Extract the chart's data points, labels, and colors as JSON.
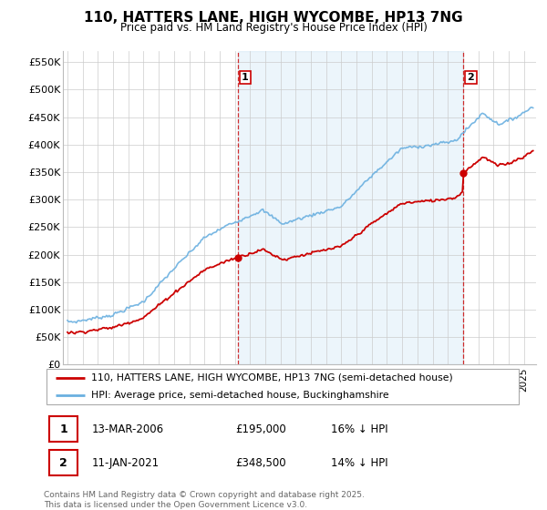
{
  "title": "110, HATTERS LANE, HIGH WYCOMBE, HP13 7NG",
  "subtitle": "Price paid vs. HM Land Registry's House Price Index (HPI)",
  "ylim": [
    0,
    570000
  ],
  "yticks": [
    0,
    50000,
    100000,
    150000,
    200000,
    250000,
    300000,
    350000,
    400000,
    450000,
    500000,
    550000
  ],
  "ytick_labels": [
    "£0",
    "£50K",
    "£100K",
    "£150K",
    "£200K",
    "£250K",
    "£300K",
    "£350K",
    "£400K",
    "£450K",
    "£500K",
    "£550K"
  ],
  "hpi_color": "#6ab0e0",
  "price_color": "#cc0000",
  "sale1_x": 2006.19,
  "sale1_y": 195000,
  "sale2_x": 2021.03,
  "sale2_y": 348500,
  "xmin": 1995.0,
  "xmax": 2025.6,
  "legend_line1": "110, HATTERS LANE, HIGH WYCOMBE, HP13 7NG (semi-detached house)",
  "legend_line2": "HPI: Average price, semi-detached house, Buckinghamshire",
  "annotation1_date": "13-MAR-2006",
  "annotation1_price": "£195,000",
  "annotation1_hpi": "16% ↓ HPI",
  "annotation2_date": "11-JAN-2021",
  "annotation2_price": "£348,500",
  "annotation2_hpi": "14% ↓ HPI",
  "footer": "Contains HM Land Registry data © Crown copyright and database right 2025.\nThis data is licensed under the Open Government Licence v3.0.",
  "shaded_alpha": 0.12,
  "shaded_color": "#6ab0e0",
  "vline_color": "#cc0000",
  "grid_color": "#cccccc"
}
